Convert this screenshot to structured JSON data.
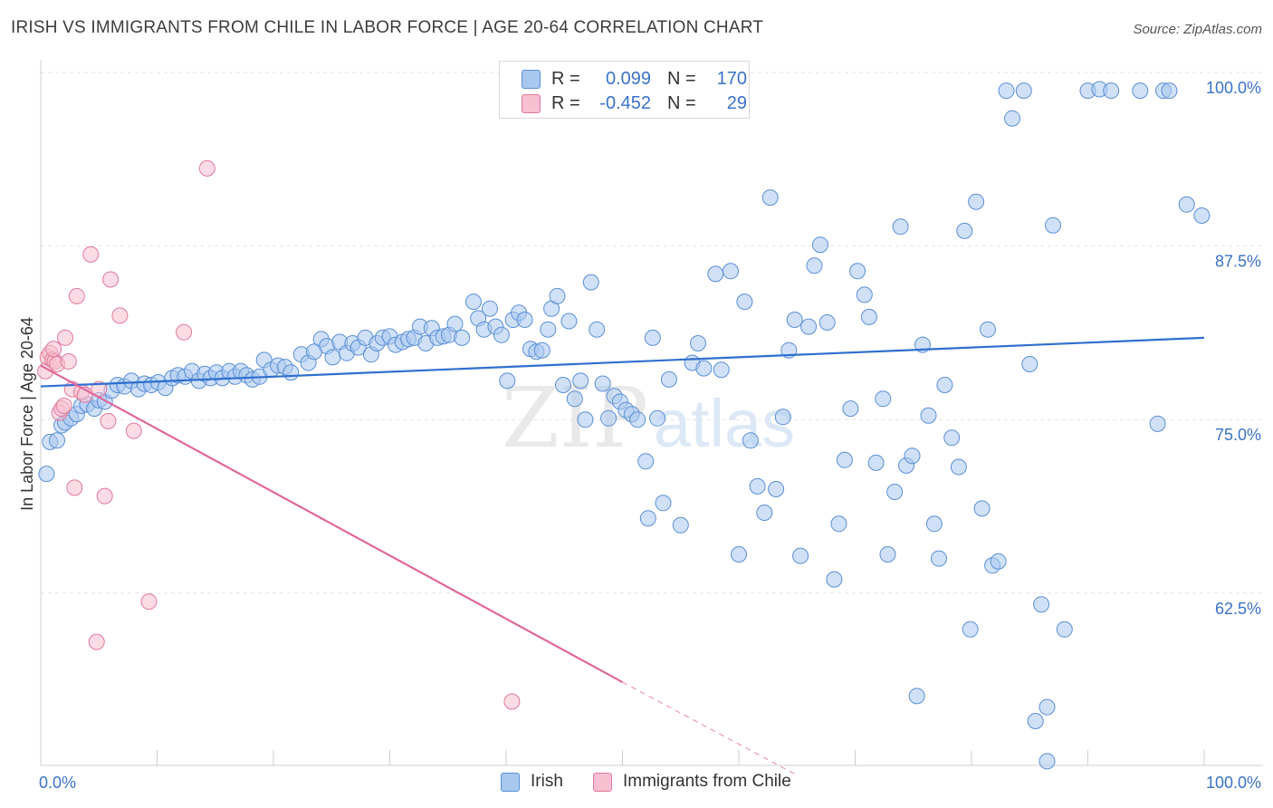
{
  "title": "IRISH VS IMMIGRANTS FROM CHILE IN LABOR FORCE | AGE 20-64 CORRELATION CHART",
  "source": "Source: ZipAtlas.com",
  "watermark": {
    "zip": "ZIP",
    "atlas": "atlas"
  },
  "legend": {
    "r_label": "R =",
    "n_label": "N =",
    "rows": [
      {
        "r": "0.099",
        "n": "170",
        "color": "#a9c8f0",
        "stroke": "#5b8fd6"
      },
      {
        "r": "-0.452",
        "n": "29",
        "color": "#f8c0d0",
        "stroke": "#e07a9a"
      }
    ]
  },
  "bottom_legend": [
    {
      "label": "Irish",
      "color": "#a9c8f0",
      "stroke": "#5b8fd6"
    },
    {
      "label": "Immigrants from Chile",
      "color": "#f8c0d0",
      "stroke": "#e07a9a"
    }
  ],
  "chart_data": {
    "type": "scatter",
    "title": "IRISH VS IMMIGRANTS FROM CHILE IN LABOR FORCE | AGE 20-64 CORRELATION CHART",
    "xlabel": "",
    "ylabel": "In Labor Force | Age 20-64",
    "xlim": [
      0,
      100
    ],
    "ylim": [
      51,
      101.5
    ],
    "x_tick_labels": [
      "0.0%",
      "100.0%"
    ],
    "y_ticks": [
      62.5,
      75.0,
      87.5,
      100.0
    ],
    "y_tick_labels": [
      "62.5%",
      "75.0%",
      "87.5%",
      "100.0%"
    ],
    "grid": "horizontal dashed",
    "legend_position": "top-center",
    "series": [
      {
        "name": "Irish",
        "color": "#5b8fd6",
        "fill": "#a9c8f0",
        "trend": {
          "x0": 0,
          "y0": 78.5,
          "x1": 100,
          "y1": 82.0
        },
        "points": [
          [
            0.5,
            72.2
          ],
          [
            0.8,
            74.5
          ],
          [
            1.4,
            74.6
          ],
          [
            1.8,
            75.7
          ],
          [
            2.1,
            75.9
          ],
          [
            2.6,
            76.2
          ],
          [
            3.1,
            76.5
          ],
          [
            3.5,
            77.1
          ],
          [
            4.0,
            77.2
          ],
          [
            4.6,
            76.9
          ],
          [
            5.0,
            77.5
          ],
          [
            5.5,
            77.4
          ],
          [
            6.1,
            78.2
          ],
          [
            6.6,
            78.6
          ],
          [
            7.2,
            78.5
          ],
          [
            7.8,
            78.9
          ],
          [
            8.4,
            78.3
          ],
          [
            8.9,
            78.7
          ],
          [
            9.5,
            78.6
          ],
          [
            10.1,
            78.8
          ],
          [
            10.7,
            78.4
          ],
          [
            11.3,
            79.1
          ],
          [
            11.8,
            79.3
          ],
          [
            12.4,
            79.2
          ],
          [
            13.0,
            79.6
          ],
          [
            13.6,
            78.9
          ],
          [
            14.1,
            79.4
          ],
          [
            14.6,
            79.1
          ],
          [
            15.1,
            79.5
          ],
          [
            15.6,
            79.1
          ],
          [
            16.2,
            79.6
          ],
          [
            16.7,
            79.2
          ],
          [
            17.2,
            79.6
          ],
          [
            17.7,
            79.3
          ],
          [
            18.2,
            79.0
          ],
          [
            18.8,
            79.2
          ],
          [
            19.2,
            80.4
          ],
          [
            19.8,
            79.7
          ],
          [
            20.4,
            80.0
          ],
          [
            21.0,
            79.9
          ],
          [
            21.5,
            79.5
          ],
          [
            22.4,
            80.8
          ],
          [
            23.0,
            80.2
          ],
          [
            23.5,
            81.0
          ],
          [
            24.1,
            81.9
          ],
          [
            24.6,
            81.4
          ],
          [
            25.1,
            80.6
          ],
          [
            25.7,
            81.7
          ],
          [
            26.3,
            80.9
          ],
          [
            26.8,
            81.6
          ],
          [
            27.3,
            81.3
          ],
          [
            27.9,
            82.0
          ],
          [
            28.4,
            80.8
          ],
          [
            28.9,
            81.6
          ],
          [
            29.4,
            82.0
          ],
          [
            30.0,
            82.1
          ],
          [
            30.5,
            81.5
          ],
          [
            31.1,
            81.7
          ],
          [
            31.6,
            81.9
          ],
          [
            32.1,
            82.0
          ],
          [
            32.6,
            82.8
          ],
          [
            33.1,
            81.6
          ],
          [
            33.6,
            82.7
          ],
          [
            34.1,
            82.0
          ],
          [
            34.6,
            82.1
          ],
          [
            35.1,
            82.2
          ],
          [
            35.6,
            83.0
          ],
          [
            36.2,
            82.0
          ],
          [
            37.2,
            84.6
          ],
          [
            37.6,
            83.4
          ],
          [
            38.1,
            82.6
          ],
          [
            38.6,
            84.1
          ],
          [
            39.1,
            82.8
          ],
          [
            39.6,
            82.2
          ],
          [
            40.1,
            78.9
          ],
          [
            40.6,
            83.3
          ],
          [
            41.1,
            83.8
          ],
          [
            41.6,
            83.3
          ],
          [
            42.1,
            81.2
          ],
          [
            42.6,
            81.0
          ],
          [
            43.1,
            81.1
          ],
          [
            43.6,
            82.6
          ],
          [
            43.9,
            84.1
          ],
          [
            44.4,
            85.0
          ],
          [
            44.9,
            78.6
          ],
          [
            45.4,
            83.2
          ],
          [
            45.9,
            77.6
          ],
          [
            46.4,
            78.9
          ],
          [
            46.8,
            76.1
          ],
          [
            47.3,
            86.0
          ],
          [
            47.8,
            82.6
          ],
          [
            48.3,
            78.7
          ],
          [
            48.8,
            76.2
          ],
          [
            49.3,
            77.8
          ],
          [
            49.8,
            77.4
          ],
          [
            50.3,
            76.8
          ],
          [
            50.8,
            76.5
          ],
          [
            51.3,
            76.1
          ],
          [
            52.0,
            73.1
          ],
          [
            52.6,
            82.0
          ],
          [
            52.2,
            69.0
          ],
          [
            53.0,
            76.2
          ],
          [
            53.5,
            70.1
          ],
          [
            54.0,
            79.0
          ],
          [
            55.0,
            68.5
          ],
          [
            56.0,
            80.2
          ],
          [
            56.5,
            81.6
          ],
          [
            57.0,
            79.8
          ],
          [
            58.0,
            86.6
          ],
          [
            58.5,
            79.7
          ],
          [
            59.3,
            86.8
          ],
          [
            60.0,
            66.4
          ],
          [
            60.5,
            84.6
          ],
          [
            61.0,
            74.6
          ],
          [
            61.6,
            71.3
          ],
          [
            62.2,
            69.4
          ],
          [
            62.7,
            92.1
          ],
          [
            63.2,
            71.1
          ],
          [
            63.8,
            76.3
          ],
          [
            64.3,
            81.1
          ],
          [
            64.8,
            83.3
          ],
          [
            65.3,
            66.3
          ],
          [
            66.0,
            82.8
          ],
          [
            66.5,
            87.2
          ],
          [
            67.0,
            88.7
          ],
          [
            67.6,
            83.1
          ],
          [
            68.2,
            64.6
          ],
          [
            68.6,
            68.6
          ],
          [
            69.1,
            73.2
          ],
          [
            69.6,
            76.9
          ],
          [
            70.2,
            86.8
          ],
          [
            70.8,
            85.1
          ],
          [
            71.2,
            83.5
          ],
          [
            71.8,
            73.0
          ],
          [
            72.4,
            77.6
          ],
          [
            72.8,
            66.4
          ],
          [
            73.4,
            70.9
          ],
          [
            73.9,
            90.0
          ],
          [
            74.4,
            72.8
          ],
          [
            74.9,
            73.5
          ],
          [
            75.3,
            56.2
          ],
          [
            75.8,
            81.5
          ],
          [
            76.3,
            76.4
          ],
          [
            76.8,
            68.6
          ],
          [
            77.2,
            66.1
          ],
          [
            77.7,
            78.6
          ],
          [
            78.3,
            74.8
          ],
          [
            78.9,
            72.7
          ],
          [
            79.4,
            89.7
          ],
          [
            79.9,
            61.0
          ],
          [
            80.4,
            91.8
          ],
          [
            80.9,
            69.7
          ],
          [
            81.4,
            82.6
          ],
          [
            81.8,
            65.6
          ],
          [
            82.3,
            65.9
          ],
          [
            83.0,
            99.8
          ],
          [
            83.5,
            97.8
          ],
          [
            84.5,
            99.8
          ],
          [
            85.0,
            80.1
          ],
          [
            85.5,
            54.4
          ],
          [
            86.0,
            62.8
          ],
          [
            86.5,
            55.4
          ],
          [
            87.0,
            90.1
          ],
          [
            88.0,
            61.0
          ],
          [
            90.0,
            99.8
          ],
          [
            91.0,
            99.9
          ],
          [
            92.0,
            99.8
          ],
          [
            94.5,
            99.8
          ],
          [
            96.5,
            99.8
          ],
          [
            98.5,
            91.6
          ],
          [
            99.8,
            90.8
          ],
          [
            96.0,
            75.8
          ],
          [
            86.5,
            51.5
          ],
          [
            97.0,
            99.8
          ]
        ]
      },
      {
        "name": "Immigrants from Chile",
        "color": "#e07a9a",
        "fill": "#f8c0d0",
        "trend": {
          "x0": 0,
          "y0": 80.0,
          "x1": 50,
          "y1": 57.2,
          "dash_to_x": 65,
          "dash_to_y": 50.5
        },
        "points": [
          [
            0.4,
            79.6
          ],
          [
            0.6,
            80.6
          ],
          [
            0.8,
            80.9
          ],
          [
            1.0,
            80.4
          ],
          [
            1.2,
            80.3
          ],
          [
            1.4,
            80.1
          ],
          [
            1.6,
            76.6
          ],
          [
            1.8,
            76.9
          ],
          [
            2.0,
            77.1
          ],
          [
            2.1,
            82.0
          ],
          [
            2.4,
            80.3
          ],
          [
            2.7,
            78.3
          ],
          [
            2.9,
            71.2
          ],
          [
            3.1,
            85.0
          ],
          [
            3.5,
            78.1
          ],
          [
            3.8,
            77.9
          ],
          [
            4.3,
            88.0
          ],
          [
            4.8,
            60.1
          ],
          [
            5.0,
            78.3
          ],
          [
            5.5,
            70.6
          ],
          [
            5.8,
            76.0
          ],
          [
            6.0,
            86.2
          ],
          [
            6.8,
            83.6
          ],
          [
            8.0,
            75.3
          ],
          [
            9.3,
            63.0
          ],
          [
            12.3,
            82.4
          ],
          [
            14.3,
            94.2
          ],
          [
            40.5,
            55.8
          ],
          [
            1.1,
            81.2
          ]
        ]
      }
    ]
  }
}
